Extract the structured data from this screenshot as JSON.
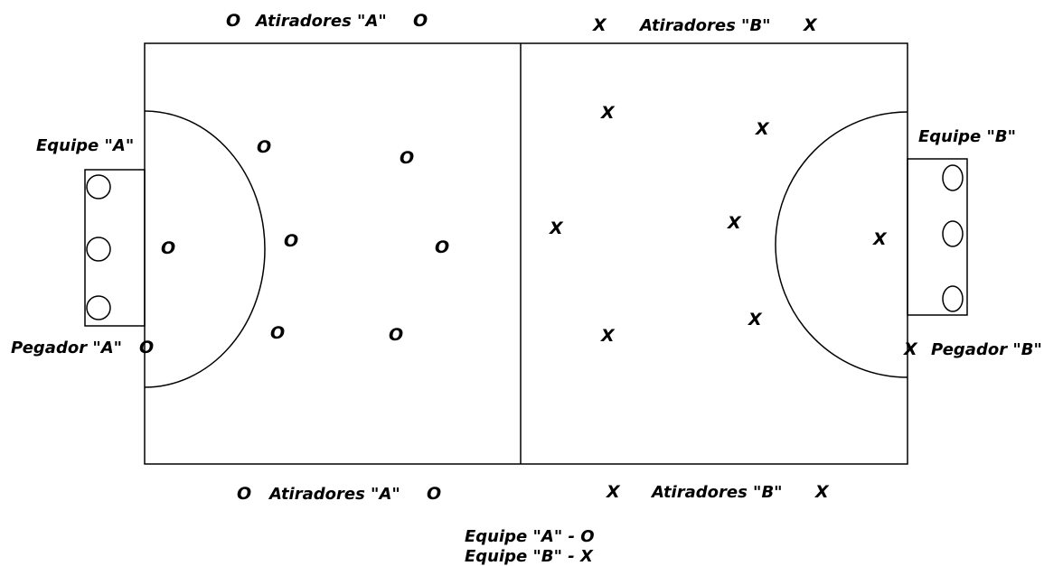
{
  "labels": {
    "atiradores_a": "Atiradores \"A\"",
    "atiradores_b": "Atiradores \"B\"",
    "equipe_a": "Equipe \"A\"",
    "equipe_b": "Equipe \"B\"",
    "pegador_a": "Pegador \"A\"",
    "pegador_b": "Pegador \"B\"",
    "legend_a": "Equipe \"A\" - O",
    "legend_b": "Equipe \"B\" - X"
  },
  "symbols": {
    "team_a": "O",
    "team_b": "X"
  }
}
